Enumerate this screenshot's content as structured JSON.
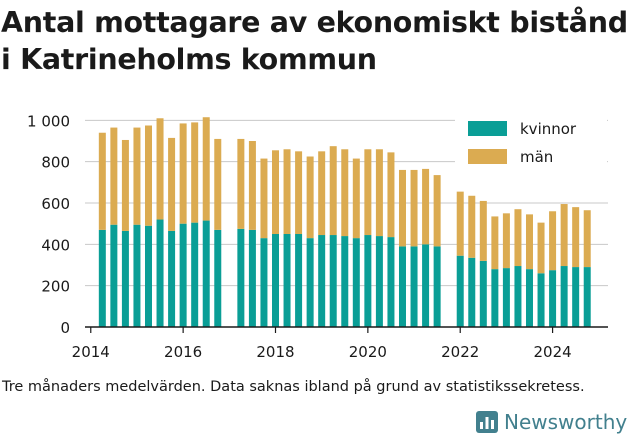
{
  "title_line1": "Antal mottagare av ekonomiskt bistånd",
  "title_line2": "i Katrineholms kommun",
  "note": "Tre månaders medelvärden. Data saknas ibland på grund av statistikssekretess.",
  "brand": "Newsworthy",
  "colors": {
    "kvinnor": "#0a9e96",
    "man": "#dbab51",
    "grid": "#c8c8c8",
    "brand": "#42808e"
  },
  "chart_data": {
    "type": "bar",
    "stacked": true,
    "legend_position": "top-right",
    "x": [
      2014.25,
      2014.5,
      2014.75,
      2015.0,
      2015.25,
      2015.5,
      2015.75,
      2016.0,
      2016.25,
      2016.5,
      2016.75,
      2017.25,
      2017.5,
      2017.75,
      2018.0,
      2018.25,
      2018.5,
      2018.75,
      2019.0,
      2019.25,
      2019.5,
      2019.75,
      2020.0,
      2020.25,
      2020.5,
      2020.75,
      2021.0,
      2021.25,
      2021.5,
      2022.0,
      2022.25,
      2022.5,
      2022.75,
      2023.0,
      2023.25,
      2023.5,
      2023.75,
      2024.0,
      2024.25,
      2024.5,
      2024.75
    ],
    "series": [
      {
        "name": "kvinnor",
        "values": [
          470,
          495,
          465,
          495,
          490,
          520,
          465,
          500,
          505,
          515,
          470,
          475,
          470,
          430,
          450,
          450,
          450,
          430,
          445,
          445,
          440,
          430,
          445,
          440,
          435,
          390,
          390,
          400,
          390,
          345,
          335,
          320,
          280,
          285,
          295,
          280,
          260,
          275,
          295,
          290,
          290
        ]
      },
      {
        "name": "män",
        "values": [
          470,
          470,
          440,
          470,
          485,
          490,
          450,
          485,
          485,
          500,
          440,
          435,
          430,
          385,
          405,
          410,
          400,
          395,
          405,
          430,
          420,
          385,
          415,
          420,
          410,
          370,
          370,
          365,
          345,
          310,
          300,
          290,
          255,
          265,
          275,
          265,
          245,
          285,
          300,
          290,
          275
        ]
      }
    ],
    "xticks": [
      "2014",
      "2016",
      "2018",
      "2020",
      "2022",
      "2024"
    ],
    "yticks": [
      "0",
      "200",
      "400",
      "600",
      "800",
      "1 000"
    ],
    "ylim": [
      0,
      1050
    ],
    "xlim": [
      2013.875,
      2025.2
    ]
  }
}
